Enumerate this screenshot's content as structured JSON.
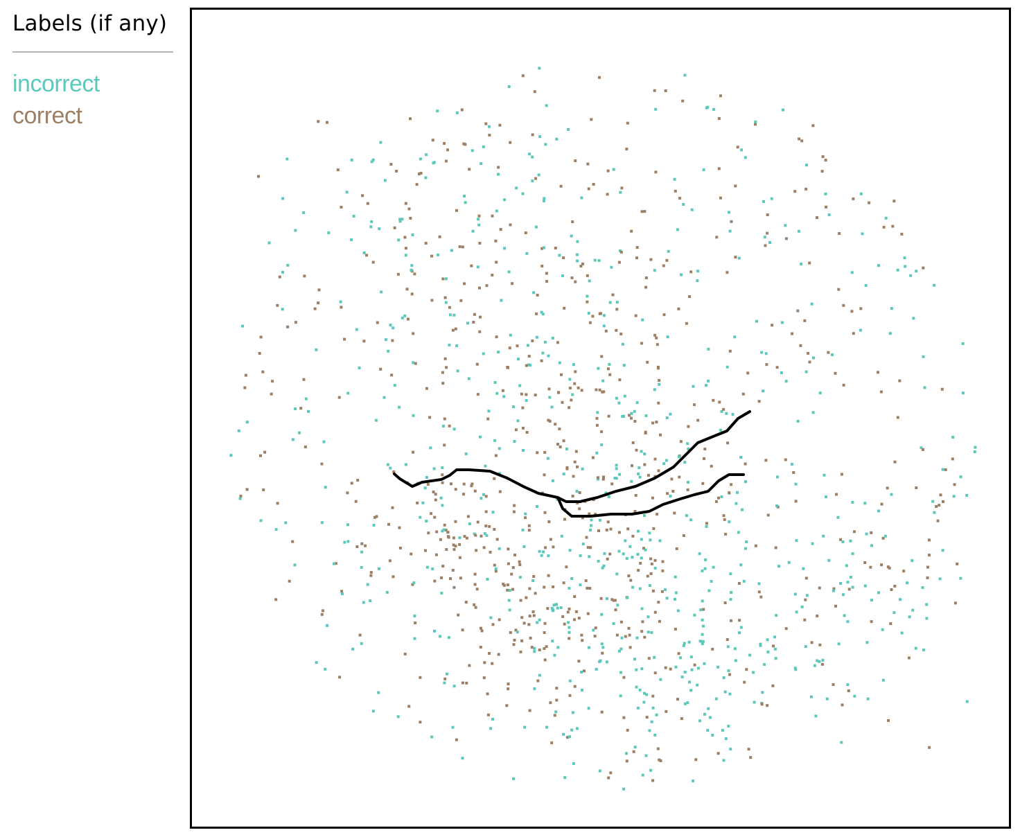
{
  "panel": {
    "title": "Labels (if any)",
    "labels": [
      {
        "text": "incorrect",
        "color": "#5cc8bb"
      },
      {
        "text": "correct",
        "color": "#9c7f64"
      }
    ]
  },
  "canvas": {
    "point_colors": {
      "incorrect": "#5cc8bb",
      "correct": "#9c7f64"
    },
    "stroke_color": "#000000"
  }
}
